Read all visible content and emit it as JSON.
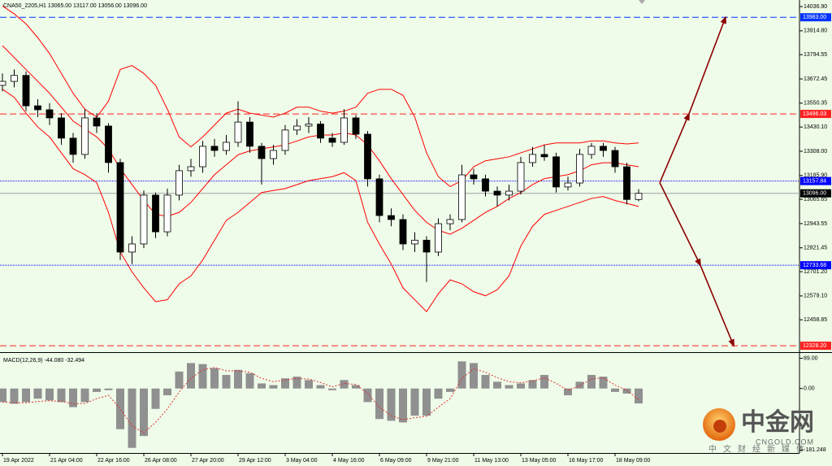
{
  "chart_data": {
    "type": "candlestick",
    "title": "CNA50_2205,H1 13065.00 13117.00 13056.00 13096.00",
    "open": [
      13640,
      13660,
      13690,
      13537,
      13517,
      13476,
      13374,
      13292,
      13476,
      13435,
      13251,
      12800,
      12841,
      13087,
      12902,
      13087,
      13210,
      13230,
      13333,
      13312,
      13353,
      13455,
      13333,
      13271,
      13312,
      13415,
      13435,
      13445,
      13374,
      13353,
      13476,
      13394,
      13169,
      12984,
      12964,
      12841,
      12860,
      12800,
      12943,
      12964,
      13189,
      13169,
      13107,
      13087,
      13107,
      13251,
      13292,
      13280,
      13128,
      13148,
      13292,
      13333,
      13312,
      13230,
      13065
    ],
    "high": [
      13700,
      13720,
      13710,
      13570,
      13550,
      13500,
      13400,
      13520,
      13500,
      13450,
      13270,
      12880,
      13110,
      13100,
      13120,
      13240,
      13270,
      13360,
      13370,
      13390,
      13560,
      13480,
      13350,
      13340,
      13440,
      13470,
      13480,
      13460,
      13400,
      13520,
      13490,
      13410,
      13190,
      13020,
      12990,
      12900,
      12880,
      12970,
      12990,
      13240,
      13220,
      13190,
      13130,
      13140,
      13280,
      13330,
      13340,
      13300,
      13180,
      13320,
      13350,
      13350,
      13330,
      13250,
      13117
    ],
    "low": [
      13610,
      13630,
      13510,
      13480,
      13440,
      13340,
      13250,
      13270,
      13400,
      13200,
      12760,
      12740,
      12820,
      12870,
      12880,
      13060,
      13180,
      13200,
      13280,
      13290,
      13330,
      13300,
      13140,
      13240,
      13290,
      13390,
      13400,
      13350,
      13330,
      13340,
      13370,
      13130,
      12950,
      12930,
      12810,
      12800,
      12650,
      12780,
      12910,
      12950,
      13140,
      13080,
      13030,
      13060,
      13090,
      13230,
      13260,
      13100,
      13110,
      13130,
      13270,
      13280,
      13200,
      13040,
      13056
    ],
    "close": [
      13660,
      13690,
      13537,
      13517,
      13476,
      13374,
      13292,
      13476,
      13435,
      13251,
      12800,
      12841,
      13087,
      12902,
      13087,
      13210,
      13230,
      13333,
      13312,
      13353,
      13455,
      13333,
      13271,
      13312,
      13415,
      13435,
      13445,
      13374,
      13353,
      13476,
      13394,
      13169,
      12984,
      12964,
      12841,
      12860,
      12800,
      12943,
      12964,
      13189,
      13169,
      13107,
      13087,
      13107,
      13251,
      13292,
      13280,
      13128,
      13148,
      13292,
      13333,
      13312,
      13230,
      13065,
      13096
    ],
    "overlays": [
      {
        "color": "#ff0000",
        "values": [
          14040,
          14000,
          13950,
          13880,
          13800,
          13700,
          13600,
          13520,
          13480,
          13560,
          13720,
          13740,
          13700,
          13640,
          13520,
          13380,
          13330,
          13380,
          13440,
          13500,
          13520,
          13500,
          13490,
          13480,
          13500,
          13530,
          13530,
          13510,
          13500,
          13510,
          13530,
          13600,
          13620,
          13620,
          13590,
          13480,
          13300,
          13180,
          13130,
          13160,
          13230,
          13260,
          13270,
          13280,
          13300,
          13320,
          13340,
          13350,
          13350,
          13350,
          13360,
          13360,
          13350,
          13345,
          13350
        ]
      },
      {
        "color": "#ff0000",
        "values": [
          13840,
          13780,
          13720,
          13660,
          13600,
          13530,
          13460,
          13420,
          13380,
          13320,
          13220,
          13140,
          13060,
          12990,
          12980,
          13000,
          13050,
          13120,
          13190,
          13240,
          13290,
          13310,
          13320,
          13330,
          13340,
          13360,
          13380,
          13390,
          13390,
          13400,
          13390,
          13340,
          13260,
          13170,
          13090,
          13010,
          12950,
          12910,
          12890,
          12920,
          12960,
          13000,
          13030,
          13070,
          13100,
          13140,
          13170,
          13180,
          13190,
          13210,
          13240,
          13250,
          13250,
          13240,
          13230
        ]
      },
      {
        "color": "#ff0000",
        "values": [
          13620,
          13580,
          13500,
          13430,
          13380,
          13300,
          13220,
          13190,
          13150,
          13000,
          12800,
          12700,
          12620,
          12550,
          12560,
          12640,
          12680,
          12760,
          12860,
          12960,
          13000,
          13050,
          13100,
          13110,
          13120,
          13140,
          13160,
          13170,
          13180,
          13200,
          13160,
          12950,
          12840,
          12740,
          12620,
          12560,
          12500,
          12590,
          12660,
          12640,
          12600,
          12580,
          12610,
          12680,
          12830,
          12930,
          12990,
          13010,
          13030,
          13050,
          13070,
          13080,
          13060,
          13045,
          13030
        ]
      }
    ],
    "ylim": [
      12300,
      14070
    ],
    "yticks": [
      {
        "value": 14036.9,
        "label": "14036.90"
      },
      {
        "value": 13914.8,
        "label": "13914.80"
      },
      {
        "value": 13794.55,
        "label": "13794.55"
      },
      {
        "value": 13672.45,
        "label": "13672.45"
      },
      {
        "value": 13550.35,
        "label": "13550.35"
      },
      {
        "value": 13430.1,
        "label": "13430.10"
      },
      {
        "value": 13308,
        "label": "13308.00"
      },
      {
        "value": 13185.9,
        "label": "13185.90"
      },
      {
        "value": 13065.65,
        "label": "13065.65"
      },
      {
        "value": 12943.55,
        "label": "12943.55"
      },
      {
        "value": 12821.45,
        "label": "12821.45"
      },
      {
        "value": 12701.2,
        "label": "12701.20"
      },
      {
        "value": 12579.1,
        "label": "12579.10"
      },
      {
        "value": 12458.85,
        "label": "12458.85"
      }
    ],
    "xticks": [
      {
        "value": 0,
        "label": "19 Apr 2022"
      },
      {
        "value": 4,
        "label": "21 Apr 04:00"
      },
      {
        "value": 8,
        "label": "22 Apr 16:00"
      },
      {
        "value": 12,
        "label": "26 Apr 08:00"
      },
      {
        "value": 16,
        "label": "27 Apr 20:00"
      },
      {
        "value": 20,
        "label": "29 Apr 12:00"
      },
      {
        "value": 24,
        "label": "3 May 04:00"
      },
      {
        "value": 28,
        "label": "4 May 16:00"
      },
      {
        "value": 32,
        "label": "6 May 09:00"
      },
      {
        "value": 36,
        "label": "9 May 21:00"
      },
      {
        "value": 40,
        "label": "11 May 13:00"
      },
      {
        "value": 44,
        "label": "13 May 05:00"
      },
      {
        "value": 48,
        "label": "16 May 17:00"
      },
      {
        "value": 52,
        "label": "18 May 09:00"
      }
    ],
    "levels": [
      {
        "value": 13983,
        "label": "13983.00",
        "color": "#0033ff",
        "style": "dashed"
      },
      {
        "value": 13496.03,
        "label": "13496.03",
        "color": "#ff2020",
        "style": "dashed"
      },
      {
        "value": 13157.84,
        "label": "13157.84",
        "color": "#0000ff",
        "style": "dotted"
      },
      {
        "value": 13096,
        "label": "13096.00",
        "color": "#000000",
        "style": "solid"
      },
      {
        "value": 12733.68,
        "label": "12733.68",
        "color": "#0000ff",
        "style": "dotted"
      },
      {
        "value": 12328.2,
        "label": "12328.20",
        "color": "#ff2020",
        "style": "dashed"
      }
    ],
    "macd": {
      "title": "MACD(12,26,9) -44.080 -32.494",
      "histogram": [
        -40,
        -45,
        -40,
        -30,
        -35,
        -40,
        -55,
        -40,
        -10,
        -5,
        -120,
        -175,
        -140,
        -60,
        -20,
        50,
        75,
        72,
        60,
        40,
        55,
        45,
        15,
        10,
        30,
        35,
        25,
        10,
        -5,
        25,
        10,
        -40,
        -90,
        -95,
        -100,
        -80,
        -80,
        -30,
        -10,
        80,
        75,
        40,
        20,
        10,
        15,
        25,
        40,
        0,
        -20,
        20,
        40,
        35,
        -10,
        -15,
        -44.08
      ],
      "signal": [
        -40,
        -42,
        -42,
        -38,
        -36,
        -38,
        -45,
        -44,
        -30,
        -20,
        -60,
        -110,
        -130,
        -100,
        -60,
        -10,
        30,
        55,
        62,
        52,
        52,
        48,
        30,
        20,
        25,
        30,
        28,
        18,
        5,
        15,
        12,
        -15,
        -55,
        -80,
        -92,
        -86,
        -82,
        -55,
        -30,
        30,
        58,
        48,
        32,
        20,
        17,
        22,
        32,
        15,
        -5,
        8,
        28,
        32,
        10,
        -5,
        -32.494
      ],
      "color": "#909090",
      "signal_color": "#e03030",
      "ylim": [
        -190,
        100
      ],
      "yticks": [
        {
          "value": 89,
          "label": "89.00"
        },
        {
          "value": 0,
          "label": "0.00"
        },
        {
          "value": -181.248,
          "label": "-181.248"
        }
      ]
    },
    "watermark": {
      "name": "中金网",
      "site": "CNGOLD.COM",
      "slogan": "中文财经新媒体"
    }
  }
}
